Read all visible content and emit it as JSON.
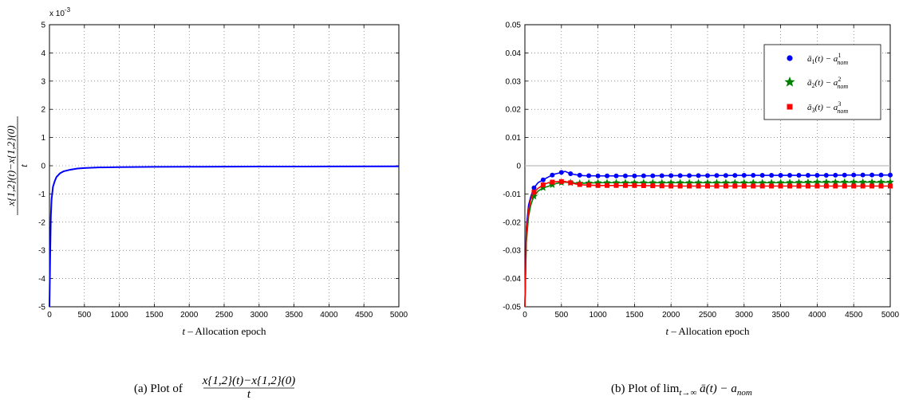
{
  "chart_data": [
    {
      "type": "line",
      "ylabel": "x{1,2}(t) − x{1,2}(0) / t",
      "ylabel_num": "x{1,2}(t)−x{1,2}(0)",
      "ylabel_den": "t",
      "xlabel_var": "t",
      "xlabel_text": " – Allocation epoch",
      "xlim": [
        0,
        5000
      ],
      "ylim": [
        -5,
        5
      ],
      "y_exponent": "x 10",
      "y_exponent_power": "-3",
      "grid": true,
      "xticks": [
        "0",
        "500",
        "1000",
        "1500",
        "2000",
        "2500",
        "3000",
        "3500",
        "4000",
        "4500",
        "5000"
      ],
      "yticks": [
        "-5",
        "-4",
        "-3",
        "-2",
        "-1",
        "0",
        "1",
        "2",
        "3",
        "4",
        "5"
      ],
      "series": [
        {
          "color": "#0000ff",
          "x": [
            0,
            10,
            20,
            30,
            50,
            75,
            100,
            150,
            200,
            300,
            400,
            500,
            700,
            1000,
            1500,
            2000,
            3000,
            4000,
            5000
          ],
          "y": [
            -5,
            -3.2,
            -1.8,
            -1.2,
            -0.75,
            -0.55,
            -0.4,
            -0.27,
            -0.2,
            -0.14,
            -0.1,
            -0.08,
            -0.06,
            -0.05,
            -0.04,
            -0.035,
            -0.03,
            -0.025,
            -0.02
          ]
        }
      ],
      "caption_label": "(a)  Plot of",
      "caption_num": "x{1,2}(t)−x{1,2}(0)",
      "caption_den": "t"
    },
    {
      "type": "line",
      "xlabel_var": "t",
      "xlabel_text": " – Allocation epoch",
      "xlim": [
        0,
        5000
      ],
      "ylim": [
        -0.05,
        0.05
      ],
      "grid": true,
      "legend_position": "top-right",
      "xticks": [
        "0",
        "500",
        "1000",
        "1500",
        "2000",
        "2500",
        "3000",
        "3500",
        "4000",
        "4500",
        "5000"
      ],
      "yticks": [
        "-0.05",
        "-0.04",
        "-0.03",
        "-0.02",
        "-0.01",
        "0",
        "0.01",
        "0.02",
        "0.03",
        "0.04",
        "0.05"
      ],
      "series": [
        {
          "name": "ā1(t) − a1nom",
          "legend_main": "ā",
          "legend_sub": "1",
          "legend_rest": "(t) − a",
          "legend_sup": "1",
          "legend_nom": "nom",
          "color": "#0000ff",
          "marker": "circle",
          "x": [
            0,
            20,
            50,
            80,
            120,
            180,
            250,
            320,
            400,
            480,
            550,
            620,
            700,
            800,
            1000,
            1500,
            2000,
            2500,
            3000,
            3500,
            4000,
            4500,
            5000
          ],
          "y": [
            -0.05,
            -0.022,
            -0.014,
            -0.011,
            -0.008,
            -0.006,
            -0.005,
            -0.004,
            -0.003,
            -0.0025,
            -0.002,
            -0.0028,
            -0.0032,
            -0.0035,
            -0.0036,
            -0.0036,
            -0.0035,
            -0.0035,
            -0.0034,
            -0.0034,
            -0.0034,
            -0.0033,
            -0.0033
          ]
        },
        {
          "name": "ā2(t) − a2nom",
          "legend_main": "ā",
          "legend_sub": "2",
          "legend_rest": "(t) − a",
          "legend_sup": "2",
          "legend_nom": "nom",
          "color": "#008000",
          "marker": "star",
          "x": [
            0,
            20,
            50,
            80,
            120,
            180,
            250,
            320,
            400,
            480,
            550,
            620,
            700,
            800,
            1000,
            1500,
            2000,
            2500,
            3000,
            3500,
            4000,
            4500,
            5000
          ],
          "y": [
            -0.05,
            -0.027,
            -0.018,
            -0.014,
            -0.011,
            -0.009,
            -0.0078,
            -0.0073,
            -0.0065,
            -0.006,
            -0.0058,
            -0.006,
            -0.0062,
            -0.0062,
            -0.006,
            -0.006,
            -0.006,
            -0.006,
            -0.006,
            -0.006,
            -0.0058,
            -0.0058,
            -0.0058
          ]
        },
        {
          "name": "ā3(t) − a3nom",
          "legend_main": "ā",
          "legend_sub": "3",
          "legend_rest": "(t) − a",
          "legend_sup": "3",
          "legend_nom": "nom",
          "color": "#ff0000",
          "marker": "square",
          "x": [
            0,
            20,
            50,
            80,
            120,
            180,
            250,
            320,
            400,
            480,
            550,
            620,
            700,
            800,
            1000,
            1500,
            2000,
            2500,
            3000,
            3500,
            4000,
            4500,
            5000
          ],
          "y": [
            -0.05,
            -0.024,
            -0.016,
            -0.012,
            -0.0095,
            -0.008,
            -0.0068,
            -0.006,
            -0.0057,
            -0.0056,
            -0.0056,
            -0.006,
            -0.0065,
            -0.0068,
            -0.007,
            -0.007,
            -0.0072,
            -0.0072,
            -0.0072,
            -0.0072,
            -0.0072,
            -0.0072,
            -0.0072
          ]
        }
      ],
      "caption_label": "(b)  Plot of lim",
      "caption_sub": "t→∞",
      "caption_rest": " ā(t) − a",
      "caption_nom": "nom"
    }
  ]
}
